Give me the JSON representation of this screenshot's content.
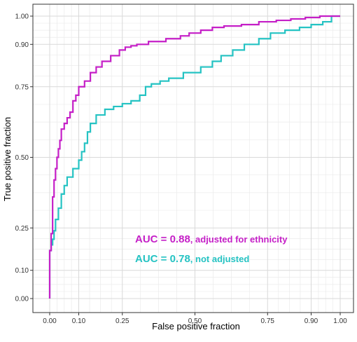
{
  "chart_data": {
    "type": "line",
    "title": "",
    "xlabel": "False positive fraction",
    "ylabel": "True positive fraction",
    "xlim": [
      0,
      1
    ],
    "ylim": [
      0,
      1
    ],
    "x_ticks": [
      0.0,
      0.1,
      0.25,
      0.5,
      0.75,
      0.9,
      1.0
    ],
    "y_ticks": [
      0.0,
      0.1,
      0.25,
      0.5,
      0.75,
      0.9,
      1.0
    ],
    "x_tick_labels": [
      "0.00",
      "0.10",
      "0.25",
      "0.50",
      "0.75",
      "0.90",
      "1.00"
    ],
    "y_tick_labels": [
      "0.00",
      "0.10",
      "0.25",
      "0.50",
      "0.75",
      "0.90",
      "1.00"
    ],
    "grid": true,
    "colors": {
      "adjusted": "#c51fc7",
      "not_adjusted": "#25c3c3"
    },
    "annotations": [
      {
        "main": "AUC = 0.88",
        "detail": ", adjusted for ethnicity",
        "color": "#c51fc7"
      },
      {
        "main": "AUC = 0.78",
        "detail": ", not adjusted",
        "color": "#25c3c3"
      }
    ],
    "series": [
      {
        "x": [
          0.0,
          0.0,
          0.005,
          0.005,
          0.01,
          0.01,
          0.015,
          0.015,
          0.02,
          0.02,
          0.025,
          0.025,
          0.03,
          0.03,
          0.035,
          0.035,
          0.04,
          0.04,
          0.05,
          0.05,
          0.06,
          0.06,
          0.07,
          0.07,
          0.08,
          0.08,
          0.09,
          0.09,
          0.1,
          0.1,
          0.12,
          0.12,
          0.14,
          0.14,
          0.16,
          0.16,
          0.18,
          0.18,
          0.21,
          0.21,
          0.24,
          0.24,
          0.26,
          0.26,
          0.28,
          0.28,
          0.3,
          0.3,
          0.34,
          0.34,
          0.4,
          0.4,
          0.45,
          0.45,
          0.48,
          0.48,
          0.52,
          0.52,
          0.56,
          0.56,
          0.6,
          0.6,
          0.66,
          0.66,
          0.72,
          0.72,
          0.78,
          0.78,
          0.83,
          0.83,
          0.88,
          0.88,
          0.93,
          0.93,
          0.97,
          0.97,
          1.0
        ],
        "y": [
          0.0,
          0.17,
          0.17,
          0.23,
          0.23,
          0.36,
          0.36,
          0.42,
          0.42,
          0.46,
          0.46,
          0.5,
          0.5,
          0.53,
          0.53,
          0.56,
          0.56,
          0.6,
          0.6,
          0.62,
          0.62,
          0.64,
          0.64,
          0.66,
          0.66,
          0.7,
          0.7,
          0.72,
          0.72,
          0.75,
          0.75,
          0.77,
          0.77,
          0.8,
          0.8,
          0.82,
          0.82,
          0.84,
          0.84,
          0.86,
          0.86,
          0.88,
          0.88,
          0.89,
          0.89,
          0.895,
          0.895,
          0.9,
          0.9,
          0.91,
          0.91,
          0.92,
          0.92,
          0.93,
          0.93,
          0.94,
          0.94,
          0.95,
          0.95,
          0.96,
          0.96,
          0.965,
          0.965,
          0.97,
          0.97,
          0.98,
          0.98,
          0.985,
          0.985,
          0.99,
          0.99,
          0.995,
          0.995,
          1.0,
          1.0,
          1.0,
          1.0
        ]
      },
      {
        "x": [
          0.0,
          0.0,
          0.005,
          0.005,
          0.01,
          0.01,
          0.015,
          0.015,
          0.02,
          0.02,
          0.03,
          0.03,
          0.04,
          0.04,
          0.05,
          0.05,
          0.06,
          0.06,
          0.08,
          0.08,
          0.1,
          0.1,
          0.11,
          0.11,
          0.12,
          0.12,
          0.13,
          0.13,
          0.14,
          0.14,
          0.16,
          0.16,
          0.19,
          0.19,
          0.22,
          0.22,
          0.25,
          0.25,
          0.28,
          0.28,
          0.31,
          0.31,
          0.33,
          0.33,
          0.35,
          0.35,
          0.38,
          0.38,
          0.41,
          0.41,
          0.46,
          0.46,
          0.52,
          0.52,
          0.56,
          0.56,
          0.59,
          0.59,
          0.63,
          0.63,
          0.67,
          0.67,
          0.72,
          0.72,
          0.76,
          0.76,
          0.81,
          0.81,
          0.86,
          0.86,
          0.9,
          0.9,
          0.94,
          0.94,
          0.97,
          0.97,
          1.0
        ],
        "y": [
          0.0,
          0.17,
          0.17,
          0.19,
          0.19,
          0.21,
          0.21,
          0.24,
          0.24,
          0.28,
          0.28,
          0.32,
          0.32,
          0.37,
          0.37,
          0.4,
          0.4,
          0.43,
          0.43,
          0.46,
          0.46,
          0.49,
          0.49,
          0.52,
          0.52,
          0.55,
          0.55,
          0.59,
          0.59,
          0.62,
          0.62,
          0.65,
          0.65,
          0.67,
          0.67,
          0.68,
          0.68,
          0.69,
          0.69,
          0.7,
          0.7,
          0.72,
          0.72,
          0.75,
          0.75,
          0.76,
          0.76,
          0.77,
          0.77,
          0.78,
          0.78,
          0.8,
          0.8,
          0.82,
          0.82,
          0.84,
          0.84,
          0.86,
          0.86,
          0.88,
          0.88,
          0.9,
          0.9,
          0.92,
          0.92,
          0.94,
          0.94,
          0.95,
          0.95,
          0.96,
          0.96,
          0.97,
          0.97,
          0.98,
          0.98,
          1.0,
          1.0
        ]
      }
    ]
  }
}
